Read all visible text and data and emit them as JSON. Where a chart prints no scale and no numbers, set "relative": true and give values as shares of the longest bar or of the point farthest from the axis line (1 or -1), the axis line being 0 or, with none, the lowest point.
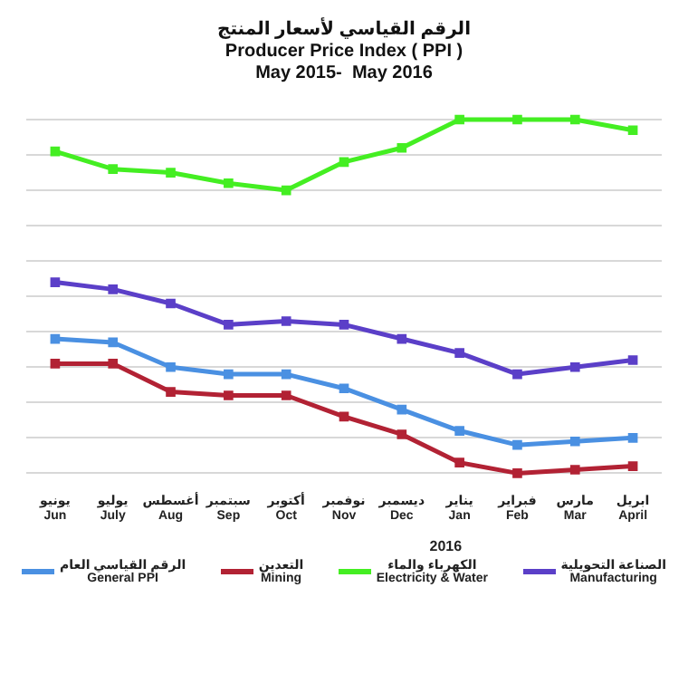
{
  "chart_data": {
    "type": "line",
    "title": "الرقم القياسي لأسعار المنتج\nProducer Price Index ( PPI )",
    "subtitle": "May 2015-  May 2016",
    "relative": true,
    "categories": [
      "يونيو\nJun",
      "يوليو\nJuly",
      "أغسطس\nAug",
      "سبتمبر\nSep",
      "أكتوبر\nOct",
      "نوفمبر\nNov",
      "ديسمبر\nDec",
      "يناير\nJan",
      "فبراير\nFeb",
      "مارس\nMar",
      "ابريل\nApril"
    ],
    "series": [
      {
        "name": "الرقم القياسي العام\nGeneral  PPI",
        "color": "#4a90e2",
        "values": [
          0.38,
          0.37,
          0.3,
          0.28,
          0.28,
          0.24,
          0.18,
          0.12,
          0.08,
          0.09,
          0.1
        ]
      },
      {
        "name": "التعدين\nMining",
        "color": "#b22234",
        "values": [
          0.31,
          0.31,
          0.23,
          0.22,
          0.22,
          0.16,
          0.11,
          0.03,
          0,
          0.01,
          0.02
        ]
      },
      {
        "name": "الكهرباء والماء\nElectricity & Water",
        "color": "#44ee22",
        "values": [
          0.91,
          0.86,
          0.85,
          0.82,
          0.8,
          0.88,
          0.92,
          1,
          1,
          1,
          0.97
        ]
      },
      {
        "name": "الصناعة التحويلية\nManufacturing",
        "color": "#5b3fc8",
        "values": [
          0.54,
          0.52,
          0.48,
          0.42,
          0.43,
          0.42,
          0.38,
          0.34,
          0.28,
          0.3,
          0.32
        ]
      }
    ],
    "annotations": [
      "2016"
    ],
    "grid": "y",
    "legend": "bottom",
    "marker": "square",
    "line_style": "solid"
  }
}
